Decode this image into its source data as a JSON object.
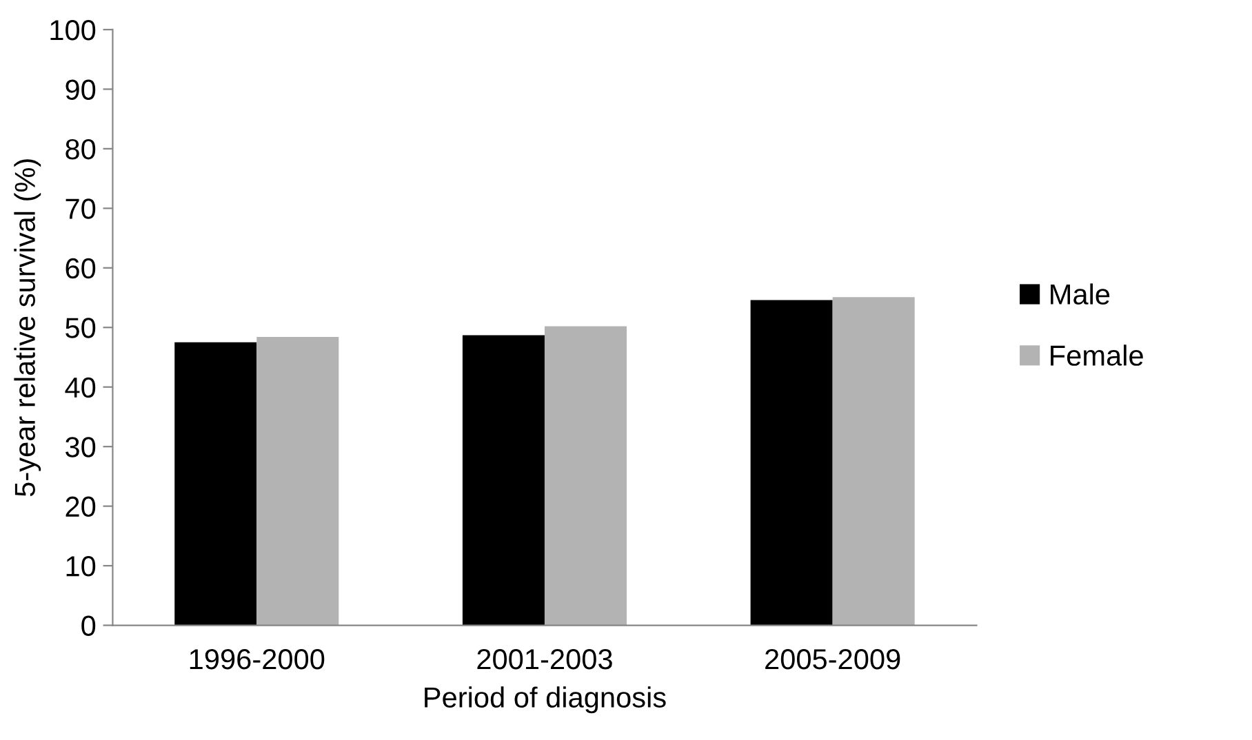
{
  "chart_data": {
    "type": "bar",
    "xlabel": "Period of diagnosis",
    "ylabel": "5-year relative survival (%)",
    "categories": [
      "1996-2000",
      "2001-2003",
      "2005-2009"
    ],
    "series": [
      {
        "name": "Male",
        "color": "#000000",
        "values": [
          47.5,
          48.7,
          54.6
        ]
      },
      {
        "name": "Female",
        "color": "#b3b3b3",
        "values": [
          48.4,
          50.2,
          55.1
        ]
      }
    ],
    "ylim": [
      0,
      100
    ],
    "yticks": [
      0,
      10,
      20,
      30,
      40,
      50,
      60,
      70,
      80,
      90,
      100
    ],
    "grid": false,
    "legend": "right"
  }
}
